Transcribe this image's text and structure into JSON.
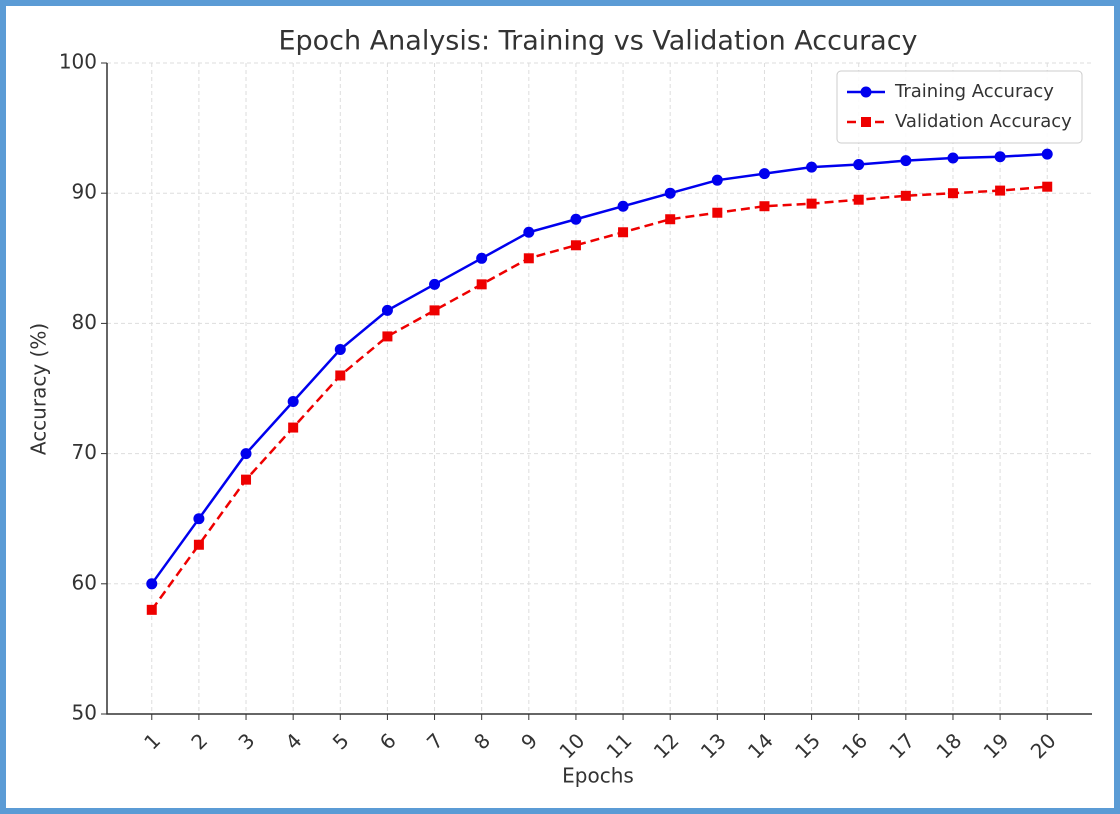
{
  "chart_data": {
    "type": "line",
    "title": "Epoch Analysis: Training vs Validation Accuracy",
    "xlabel": "Epochs",
    "ylabel": "Accuracy (%)",
    "x": [
      1,
      2,
      3,
      4,
      5,
      6,
      7,
      8,
      9,
      10,
      11,
      12,
      13,
      14,
      15,
      16,
      17,
      18,
      19,
      20
    ],
    "series": [
      {
        "name": "Training Accuracy",
        "color": "#0000ee",
        "marker": "circle",
        "linestyle": "solid",
        "values": [
          60,
          65,
          70,
          74,
          78,
          81,
          83,
          85,
          87,
          88,
          89,
          90,
          91,
          91.5,
          92,
          92.2,
          92.5,
          92.7,
          92.8,
          93
        ]
      },
      {
        "name": "Validation Accuracy",
        "color": "#ee0000",
        "marker": "square",
        "linestyle": "dashed",
        "values": [
          58,
          63,
          68,
          72,
          76,
          79,
          81,
          83,
          85,
          86,
          87,
          88,
          88.5,
          89,
          89.2,
          89.5,
          89.8,
          90,
          90.2,
          90.5
        ]
      }
    ],
    "xlim": [
      0.05,
      20.95
    ],
    "xticks": [
      1,
      2,
      3,
      4,
      5,
      6,
      7,
      8,
      9,
      10,
      11,
      12,
      13,
      14,
      15,
      16,
      17,
      18,
      19,
      20
    ],
    "ylim": [
      50,
      100
    ],
    "yticks": [
      50,
      60,
      70,
      80,
      90,
      100
    ],
    "grid": true,
    "legend": "upper right"
  }
}
